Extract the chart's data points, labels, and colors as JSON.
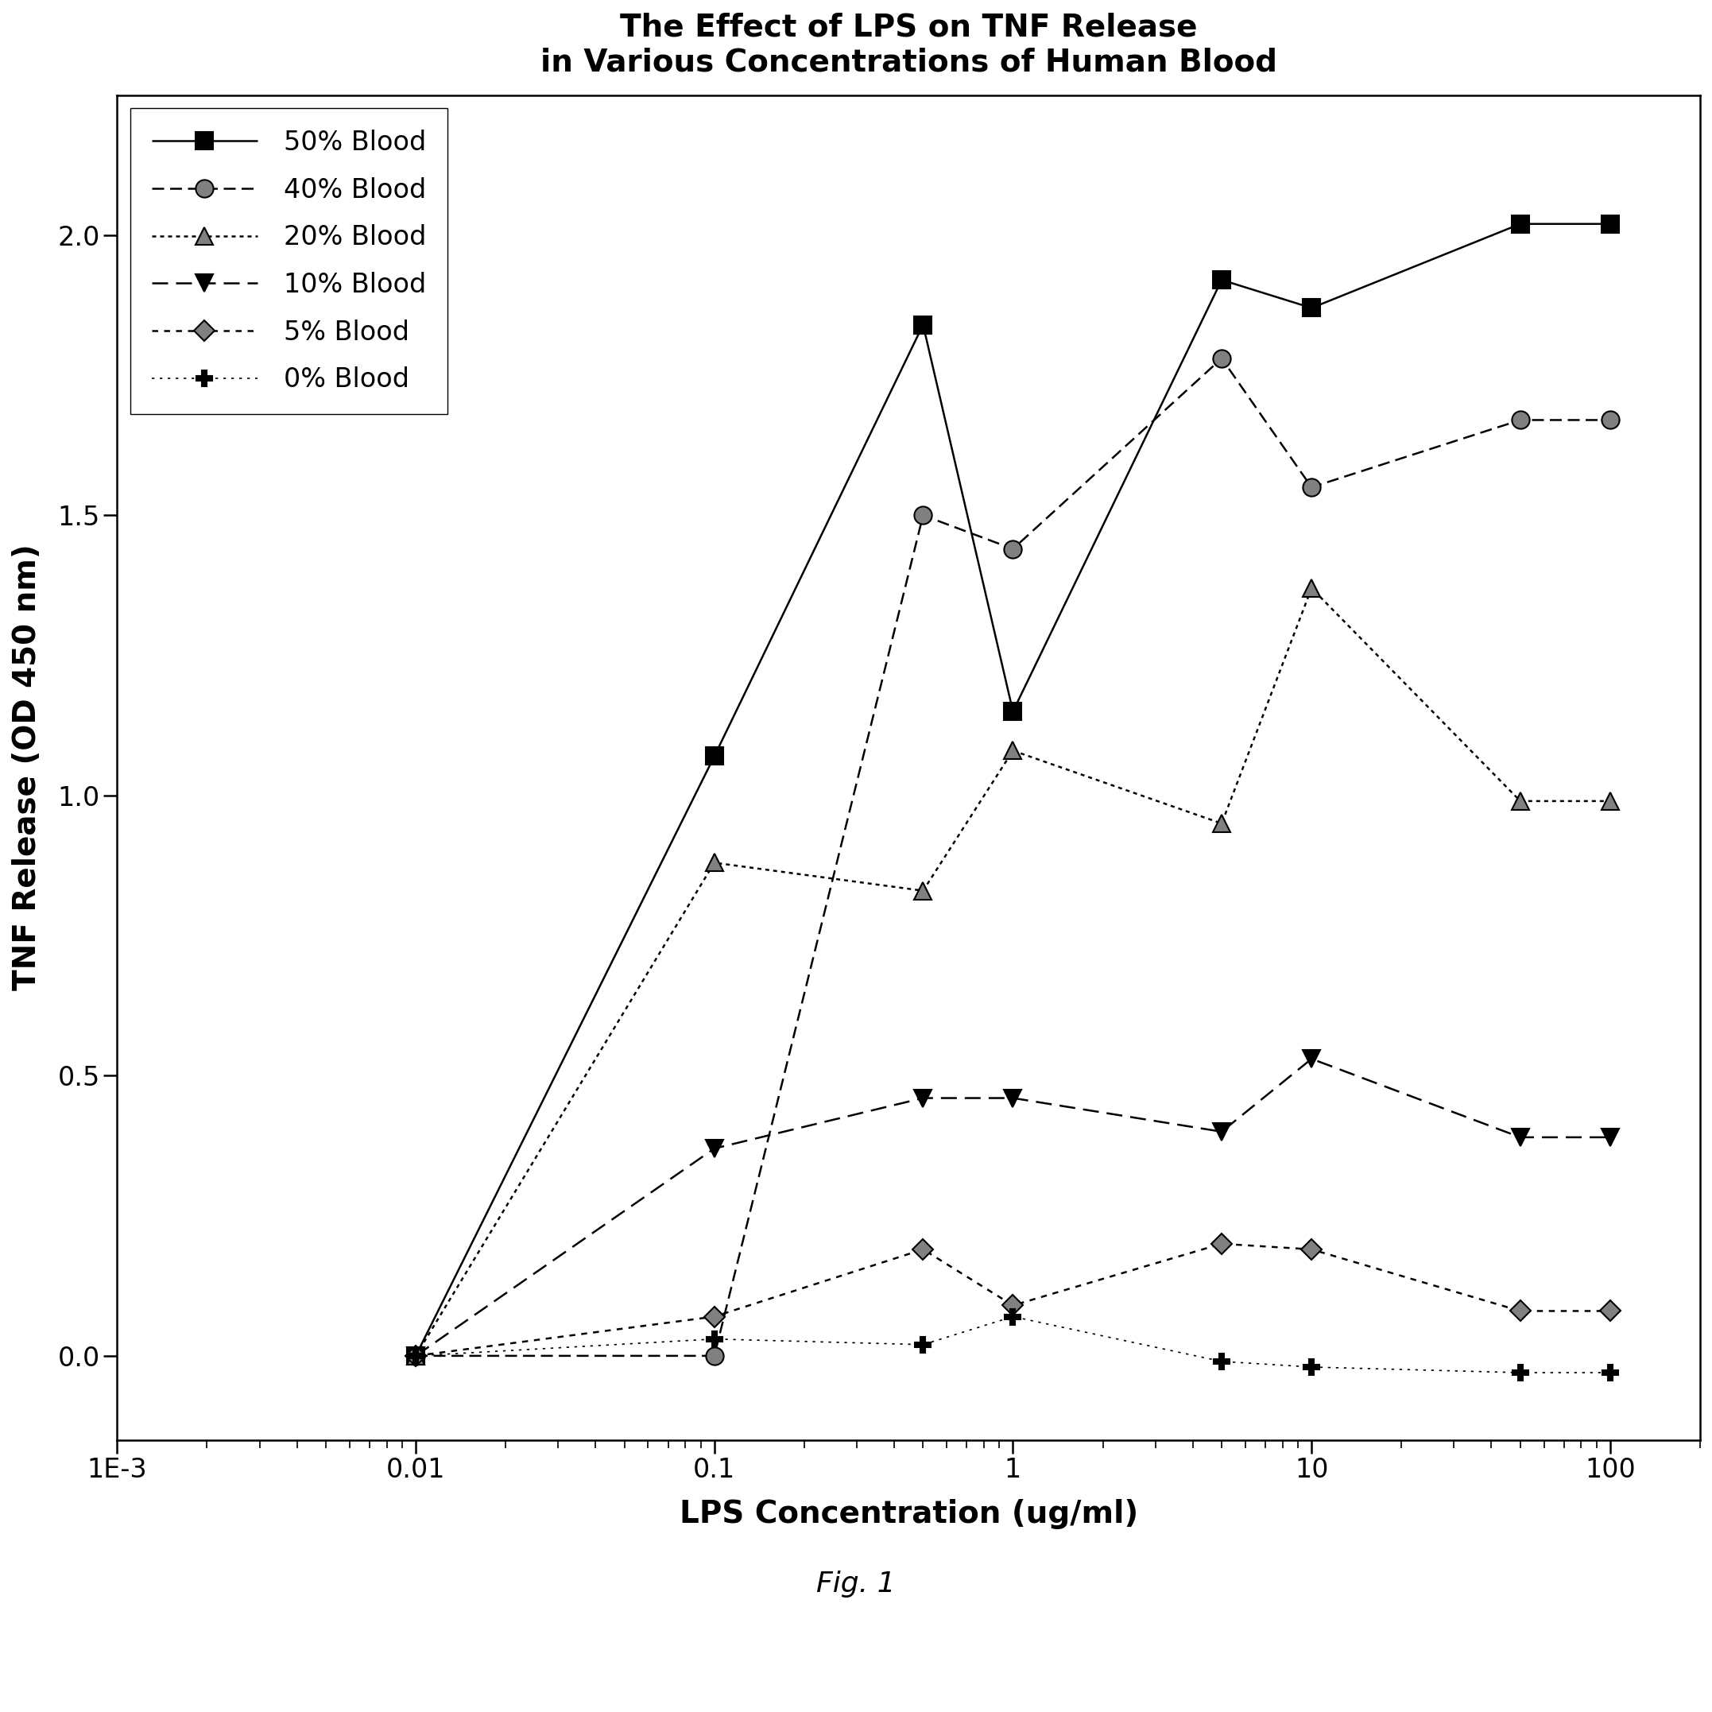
{
  "title": "The Effect of LPS on TNF Release\nin Various Concentrations of Human Blood",
  "xlabel": "LPS Concentration (ug/ml)",
  "ylabel": "TNF Release (OD 450 nm)",
  "fig_caption": "Fig. 1",
  "x_values": [
    0.01,
    0.1,
    0.5,
    1.0,
    5.0,
    10.0,
    50.0,
    100.0
  ],
  "series_order": [
    "50% Blood",
    "40% Blood",
    "20% Blood",
    "10% Blood",
    "5% Blood",
    "0% Blood"
  ],
  "series": {
    "50% Blood": {
      "y": [
        0.0,
        1.07,
        1.84,
        1.15,
        1.92,
        1.87,
        2.02,
        2.02
      ],
      "linestyle": "solid",
      "marker": "s",
      "markersize": 16,
      "markerfacecolor": "black",
      "linewidth": 1.8
    },
    "40% Blood": {
      "y": [
        0.0,
        0.0,
        1.5,
        1.44,
        1.78,
        1.55,
        1.67,
        1.67
      ],
      "linestyle": "dashed",
      "marker": "o",
      "markersize": 16,
      "markerfacecolor": "gray",
      "linewidth": 1.8
    },
    "20% Blood": {
      "y": [
        0.0,
        0.88,
        0.83,
        1.08,
        0.95,
        1.37,
        0.99,
        0.99
      ],
      "linestyle": "dotted",
      "marker": "^",
      "markersize": 16,
      "markerfacecolor": "gray",
      "linewidth": 1.8
    },
    "10% Blood": {
      "y": [
        0.0,
        0.37,
        0.46,
        0.46,
        0.4,
        0.53,
        0.39,
        0.39
      ],
      "linestyle": "dashed",
      "marker": "v",
      "markersize": 16,
      "markerfacecolor": "black",
      "linewidth": 1.8
    },
    "5% Blood": {
      "y": [
        0.0,
        0.07,
        0.19,
        0.09,
        0.2,
        0.19,
        0.08,
        0.08
      ],
      "linestyle": "dotted",
      "marker": "D",
      "markersize": 13,
      "markerfacecolor": "gray",
      "linewidth": 1.8
    },
    "0% Blood": {
      "y": [
        0.0,
        0.03,
        0.02,
        0.07,
        -0.01,
        -0.02,
        -0.03,
        -0.03
      ],
      "linestyle": "dotted",
      "marker": "P",
      "markersize": 14,
      "markerfacecolor": "black",
      "linewidth": 1.2
    }
  },
  "xlim": [
    0.001,
    200
  ],
  "ylim": [
    -0.15,
    2.25
  ],
  "ytick_labels": [
    "0.0",
    "0.5",
    "1.0",
    "1.5",
    "2.0"
  ],
  "ytick_values": [
    0.0,
    0.5,
    1.0,
    1.5,
    2.0
  ],
  "xtick_values": [
    0.001,
    0.01,
    0.1,
    1,
    10,
    100
  ],
  "xtick_labels": [
    "1E-3",
    "0.01",
    "0.1",
    "1",
    "10",
    "100"
  ],
  "background_color": "white",
  "title_fontsize": 28,
  "label_fontsize": 28,
  "tick_fontsize": 24,
  "legend_fontsize": 24,
  "caption_fontsize": 26
}
